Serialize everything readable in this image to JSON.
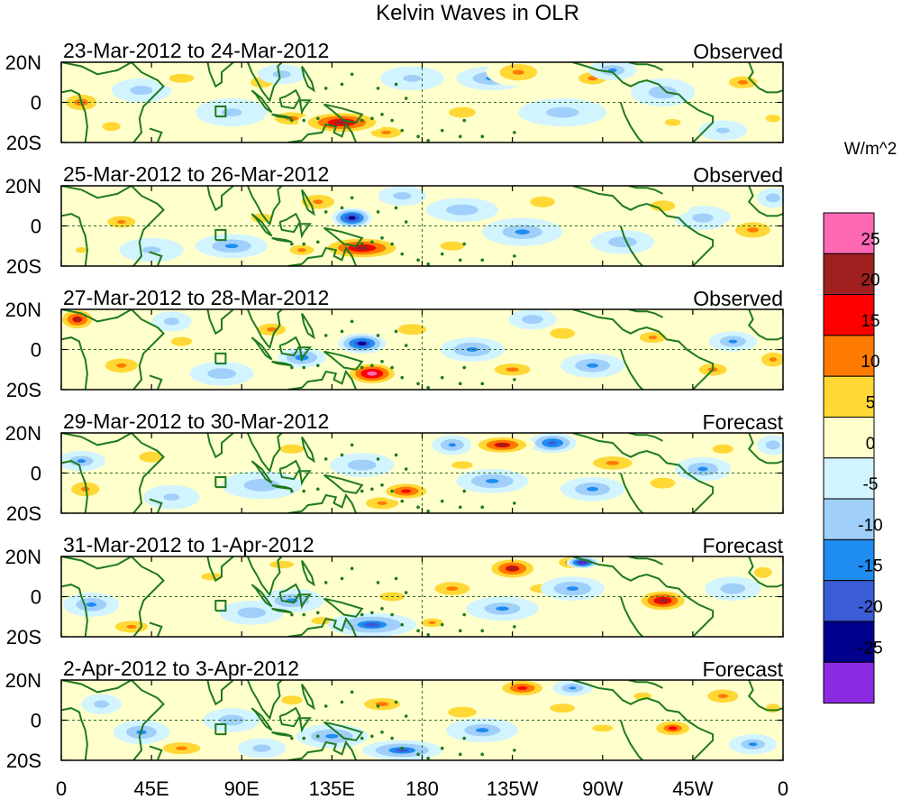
{
  "chart_data": {
    "type": "heatmap",
    "title": "Kelvin Waves in OLR",
    "units_label": "W/m^2",
    "x_ticks": [
      "0",
      "45E",
      "90E",
      "135E",
      "180",
      "135W",
      "90W",
      "45W",
      "0"
    ],
    "x_tick_values": [
      0,
      45,
      90,
      135,
      180,
      225,
      270,
      315,
      360
    ],
    "y_ticks": [
      "20N",
      "0",
      "20S"
    ],
    "y_tick_values": [
      20,
      0,
      -20
    ],
    "xlim": [
      0,
      360
    ],
    "ylim": [
      -20,
      20
    ],
    "panels": [
      {
        "date_range": "23-Mar-2012 to 24-Mar-2012",
        "status": "Observed"
      },
      {
        "date_range": "25-Mar-2012 to 26-Mar-2012",
        "status": "Observed"
      },
      {
        "date_range": "27-Mar-2012 to 28-Mar-2012",
        "status": "Observed"
      },
      {
        "date_range": "29-Mar-2012 to 30-Mar-2012",
        "status": "Forecast"
      },
      {
        "date_range": "31-Mar-2012 to 1-Apr-2012",
        "status": "Forecast"
      },
      {
        "date_range": "2-Apr-2012 to 3-Apr-2012",
        "status": "Forecast"
      }
    ],
    "colorbar": {
      "levels": [
        -25,
        -20,
        -15,
        -10,
        -5,
        0,
        5,
        10,
        15,
        20,
        25
      ],
      "tick_labels": [
        "25",
        "20",
        "15",
        "10",
        "5",
        "0",
        "-5",
        "-10",
        "-15",
        "-20",
        "-25"
      ],
      "colors": [
        "#FF69B4",
        "#A02020",
        "#FF0000",
        "#FF7A00",
        "#FFD835",
        "#FFFFCC",
        "#D2F4FF",
        "#A0CFFA",
        "#1E8CF0",
        "#3A5CD6",
        "#00008C",
        "#8A2BE2"
      ]
    },
    "anomalies": [
      [
        [
          10,
          0,
          12,
          6,
          12
        ],
        [
          60,
          12,
          14,
          5,
          7
        ],
        [
          140,
          -10,
          22,
          6,
          20
        ],
        [
          115,
          -8,
          14,
          5,
          11
        ],
        [
          162,
          -15,
          14,
          5,
          9
        ],
        [
          228,
          15,
          16,
          7,
          10
        ],
        [
          265,
          12,
          14,
          6,
          8
        ],
        [
          340,
          10,
          14,
          6,
          8
        ],
        [
          100,
          10,
          15,
          7,
          6
        ],
        [
          25,
          -12,
          12,
          6,
          6
        ],
        [
          200,
          -5,
          18,
          7,
          6
        ],
        [
          305,
          -10,
          14,
          6,
          5
        ],
        [
          355,
          -8,
          10,
          5,
          6
        ],
        [
          215,
          12,
          18,
          6,
          -9
        ],
        [
          275,
          16,
          12,
          5,
          -8
        ],
        [
          300,
          5,
          16,
          7,
          -7
        ],
        [
          250,
          -5,
          22,
          7,
          -6
        ],
        [
          40,
          6,
          15,
          6,
          -6
        ],
        [
          85,
          -5,
          18,
          7,
          -5
        ],
        [
          175,
          12,
          16,
          6,
          -5
        ],
        [
          110,
          14,
          12,
          5,
          -6
        ],
        [
          330,
          -14,
          12,
          5,
          -5
        ]
      ],
      [
        [
          30,
          2,
          12,
          5,
          10
        ],
        [
          128,
          12,
          14,
          6,
          10
        ],
        [
          150,
          -11,
          22,
          6,
          20
        ],
        [
          120,
          -12,
          12,
          5,
          8
        ],
        [
          100,
          4,
          14,
          6,
          6
        ],
        [
          240,
          12,
          14,
          6,
          7
        ],
        [
          345,
          -2,
          16,
          7,
          9
        ],
        [
          300,
          10,
          14,
          6,
          7
        ],
        [
          195,
          -10,
          16,
          6,
          6
        ],
        [
          10,
          -12,
          10,
          5,
          5
        ],
        [
          145,
          4,
          10,
          5,
          -22
        ],
        [
          85,
          -10,
          18,
          6,
          -9
        ],
        [
          230,
          -3,
          20,
          7,
          -8
        ],
        [
          200,
          8,
          18,
          6,
          -7
        ],
        [
          280,
          -8,
          16,
          6,
          -7
        ],
        [
          320,
          4,
          14,
          6,
          -6
        ],
        [
          45,
          -12,
          16,
          6,
          -5
        ],
        [
          170,
          15,
          12,
          5,
          -6
        ],
        [
          355,
          14,
          8,
          5,
          -7
        ]
      ],
      [
        [
          8,
          15,
          10,
          6,
          18
        ],
        [
          155,
          -12,
          14,
          6,
          23
        ],
        [
          30,
          -8,
          14,
          6,
          10
        ],
        [
          105,
          10,
          14,
          6,
          8
        ],
        [
          175,
          10,
          16,
          6,
          7
        ],
        [
          225,
          -10,
          18,
          6,
          8
        ],
        [
          250,
          8,
          14,
          6,
          7
        ],
        [
          295,
          6,
          12,
          5,
          9
        ],
        [
          325,
          -10,
          14,
          6,
          8
        ],
        [
          355,
          -5,
          10,
          6,
          10
        ],
        [
          60,
          4,
          14,
          6,
          6
        ],
        [
          150,
          3,
          12,
          5,
          -20
        ],
        [
          120,
          -4,
          12,
          5,
          -12
        ],
        [
          205,
          0,
          16,
          6,
          -10
        ],
        [
          265,
          -8,
          16,
          6,
          -9
        ],
        [
          335,
          4,
          12,
          5,
          -9
        ],
        [
          80,
          -12,
          16,
          6,
          -7
        ],
        [
          55,
          14,
          10,
          5,
          -6
        ],
        [
          235,
          15,
          12,
          5,
          -7
        ]
      ],
      [
        [
          220,
          14,
          16,
          5,
          18
        ],
        [
          172,
          -9,
          14,
          5,
          16
        ],
        [
          160,
          -15,
          14,
          5,
          10
        ],
        [
          12,
          -8,
          12,
          6,
          10
        ],
        [
          45,
          8,
          14,
          6,
          7
        ],
        [
          115,
          12,
          16,
          6,
          6
        ],
        [
          275,
          5,
          18,
          6,
          9
        ],
        [
          300,
          -5,
          14,
          6,
          7
        ],
        [
          330,
          12,
          14,
          6,
          6
        ],
        [
          200,
          4,
          14,
          5,
          6
        ],
        [
          245,
          15,
          12,
          5,
          -16
        ],
        [
          195,
          14,
          10,
          5,
          -10
        ],
        [
          215,
          -4,
          18,
          6,
          -10
        ],
        [
          265,
          -8,
          16,
          6,
          -9
        ],
        [
          320,
          2,
          14,
          6,
          -9
        ],
        [
          10,
          6,
          12,
          5,
          -8
        ],
        [
          100,
          -6,
          20,
          7,
          -7
        ],
        [
          150,
          4,
          16,
          6,
          -7
        ],
        [
          355,
          14,
          8,
          5,
          -7
        ],
        [
          55,
          -12,
          14,
          6,
          -5
        ]
      ],
      [
        [
          225,
          14,
          14,
          6,
          18
        ],
        [
          255,
          17,
          10,
          4,
          14
        ],
        [
          300,
          -2,
          14,
          6,
          20
        ],
        [
          35,
          -15,
          14,
          5,
          10
        ],
        [
          195,
          4,
          16,
          6,
          9
        ],
        [
          240,
          4,
          14,
          5,
          7
        ],
        [
          165,
          0,
          14,
          5,
          7
        ],
        [
          110,
          16,
          16,
          5,
          6
        ],
        [
          75,
          10,
          14,
          5,
          6
        ],
        [
          185,
          -13,
          10,
          4,
          9
        ],
        [
          350,
          12,
          10,
          6,
          7
        ],
        [
          130,
          -12,
          14,
          5,
          6
        ],
        [
          260,
          17,
          8,
          3,
          -24
        ],
        [
          155,
          -14,
          22,
          6,
          -13
        ],
        [
          115,
          -2,
          16,
          6,
          -9
        ],
        [
          255,
          4,
          16,
          6,
          -10
        ],
        [
          220,
          -6,
          18,
          6,
          -8
        ],
        [
          15,
          -4,
          14,
          6,
          -9
        ],
        [
          95,
          -8,
          16,
          6,
          -7
        ],
        [
          335,
          4,
          14,
          6,
          -7
        ]
      ],
      [
        [
          230,
          16,
          14,
          5,
          16
        ],
        [
          305,
          -4,
          12,
          5,
          14
        ],
        [
          60,
          -14,
          16,
          5,
          10
        ],
        [
          160,
          8,
          18,
          6,
          8
        ],
        [
          200,
          4,
          16,
          6,
          7
        ],
        [
          250,
          6,
          14,
          5,
          7
        ],
        [
          330,
          12,
          14,
          6,
          9
        ],
        [
          355,
          6,
          8,
          5,
          7
        ],
        [
          115,
          10,
          14,
          6,
          6
        ],
        [
          290,
          12,
          12,
          5,
          6
        ],
        [
          270,
          -4,
          18,
          6,
          5
        ],
        [
          170,
          -15,
          20,
          5,
          -13
        ],
        [
          135,
          -8,
          18,
          6,
          -10
        ],
        [
          40,
          -6,
          14,
          6,
          -9
        ],
        [
          85,
          0,
          14,
          6,
          -7
        ],
        [
          210,
          -5,
          18,
          6,
          -8
        ],
        [
          255,
          16,
          10,
          4,
          -9
        ],
        [
          345,
          -12,
          12,
          5,
          -8
        ],
        [
          20,
          8,
          10,
          5,
          -6
        ],
        [
          100,
          -14,
          12,
          5,
          -6
        ]
      ]
    ]
  }
}
